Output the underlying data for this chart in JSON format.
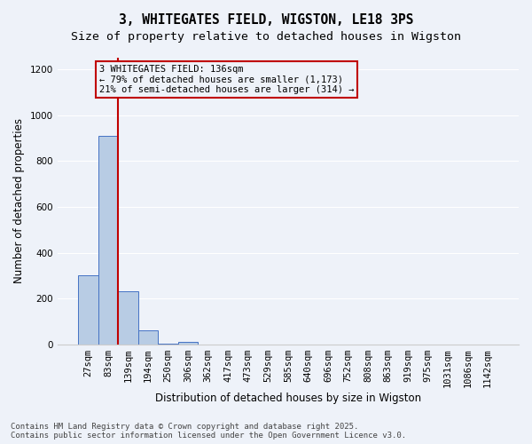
{
  "title": "3, WHITEGATES FIELD, WIGSTON, LE18 3PS",
  "subtitle": "Size of property relative to detached houses in Wigston",
  "xlabel": "Distribution of detached houses by size in Wigston",
  "ylabel": "Number of detached properties",
  "categories": [
    "27sqm",
    "83sqm",
    "139sqm",
    "194sqm",
    "250sqm",
    "306sqm",
    "362sqm",
    "417sqm",
    "473sqm",
    "529sqm",
    "585sqm",
    "640sqm",
    "696sqm",
    "752sqm",
    "808sqm",
    "863sqm",
    "919sqm",
    "975sqm",
    "1031sqm",
    "1086sqm",
    "1142sqm"
  ],
  "values": [
    300,
    910,
    230,
    60,
    5,
    12,
    0,
    0,
    0,
    0,
    0,
    0,
    0,
    0,
    0,
    0,
    0,
    0,
    0,
    0,
    0
  ],
  "bar_color": "#b8cce4",
  "bar_edge_color": "#4472c4",
  "ylim": [
    0,
    1250
  ],
  "yticks": [
    0,
    200,
    400,
    600,
    800,
    1000,
    1200
  ],
  "property_line_x": 1.5,
  "property_line_color": "#c00000",
  "annotation_box_text": "3 WHITEGATES FIELD: 136sqm\n← 79% of detached houses are smaller (1,173)\n21% of semi-detached houses are larger (314) →",
  "annotation_box_color": "#c00000",
  "footer_text": "Contains HM Land Registry data © Crown copyright and database right 2025.\nContains public sector information licensed under the Open Government Licence v3.0.",
  "background_color": "#eef2f9",
  "grid_color": "#ffffff",
  "title_fontsize": 10.5,
  "subtitle_fontsize": 9.5,
  "axis_label_fontsize": 8.5,
  "tick_fontsize": 7.5,
  "annotation_fontsize": 7.5,
  "footer_fontsize": 6.5
}
